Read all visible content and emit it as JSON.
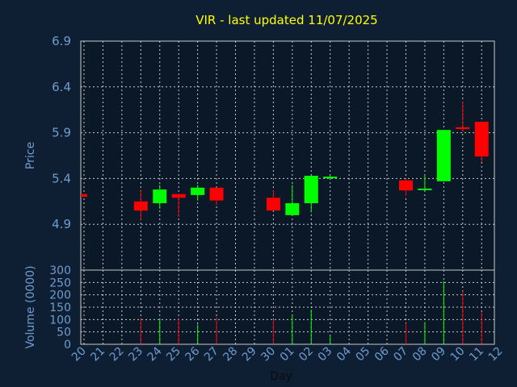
{
  "chart_data": {
    "type": "candlestick",
    "title": "VIR - last updated 11/07/2025",
    "price_axis": {
      "label": "Price",
      "ticks": [
        "6.9",
        "6.4",
        "5.9",
        "5.4",
        "4.9"
      ],
      "range": [
        4.4,
        6.9
      ]
    },
    "volume_axis": {
      "label": "Volume (0000)",
      "ticks": [
        "300",
        "250",
        "200",
        "150",
        "100",
        "50",
        "0"
      ],
      "range": [
        0,
        300
      ]
    },
    "xlabel": "Day",
    "x_ticks": [
      "20",
      "21",
      "22",
      "23",
      "24",
      "25",
      "26",
      "27",
      "28",
      "29",
      "30",
      "01",
      "02",
      "03",
      "04",
      "05",
      "06",
      "07",
      "08",
      "09",
      "10",
      "11",
      "12"
    ],
    "colors": {
      "up": "#00ff00",
      "down": "#ff0000",
      "grid": "#c8c8c8",
      "background": "#0f1f33",
      "plot": "#0b1828",
      "title": "#ffff00",
      "axis_text": "#6f9ccf"
    },
    "grid": true,
    "candles": [
      {
        "day": "20",
        "open": 5.23,
        "close": 5.2,
        "high": 5.23,
        "low": 5.2,
        "volume": 0
      },
      {
        "day": "23",
        "open": 5.15,
        "close": 5.05,
        "high": 5.28,
        "low": 4.95,
        "volume": 105
      },
      {
        "day": "24",
        "open": 5.13,
        "close": 5.28,
        "high": 5.33,
        "low": 5.07,
        "volume": 105
      },
      {
        "day": "25",
        "open": 5.23,
        "close": 5.19,
        "high": 5.23,
        "low": 4.98,
        "volume": 105
      },
      {
        "day": "26",
        "open": 5.22,
        "close": 5.3,
        "high": 5.33,
        "low": 5.16,
        "volume": 80
      },
      {
        "day": "27",
        "open": 5.3,
        "close": 5.16,
        "high": 5.3,
        "low": 5.11,
        "volume": 110
      },
      {
        "day": "30",
        "open": 5.19,
        "close": 5.05,
        "high": 5.27,
        "low": 5.05,
        "volume": 100
      },
      {
        "day": "01",
        "open": 5.0,
        "close": 5.13,
        "high": 5.33,
        "low": 5.0,
        "volume": 120
      },
      {
        "day": "02",
        "open": 5.13,
        "close": 5.43,
        "high": 5.43,
        "low": 5.03,
        "volume": 140
      },
      {
        "day": "03",
        "open": 5.41,
        "close": 5.42,
        "high": 5.43,
        "low": 5.4,
        "volume": 35
      },
      {
        "day": "07",
        "open": 5.38,
        "close": 5.27,
        "high": 5.4,
        "low": 5.21,
        "volume": 85
      },
      {
        "day": "08",
        "open": 5.28,
        "close": 5.29,
        "high": 5.44,
        "low": 5.28,
        "volume": 90
      },
      {
        "day": "09",
        "open": 5.37,
        "close": 5.93,
        "high": 5.93,
        "low": 5.37,
        "volume": 255
      },
      {
        "day": "10",
        "open": 5.96,
        "close": 5.94,
        "high": 6.24,
        "low": 5.91,
        "volume": 215
      },
      {
        "day": "11",
        "open": 6.02,
        "close": 5.64,
        "high": 6.02,
        "low": 5.58,
        "volume": 130
      }
    ]
  }
}
